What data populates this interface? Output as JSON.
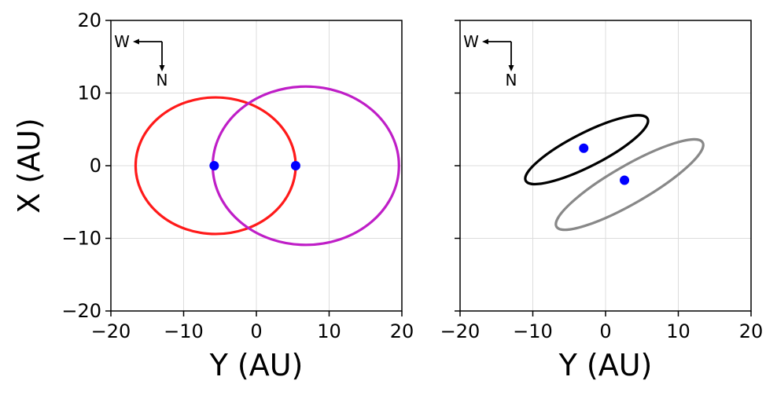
{
  "chart_data": [
    {
      "type": "line",
      "panel": "left",
      "xlabel": "Y (AU)",
      "ylabel": "X (AU)",
      "xlim": [
        -20,
        20
      ],
      "ylim": [
        -20,
        20
      ],
      "xticks": [
        -20,
        -10,
        0,
        10,
        20
      ],
      "yticks": [
        -20,
        -10,
        0,
        10,
        20
      ],
      "grid": true,
      "compass": {
        "west": "W",
        "north": "N"
      },
      "series": [
        {
          "type": "ellipse",
          "color": "#ff1a1a",
          "center": [
            -5.6,
            0.0
          ],
          "semi_axes": [
            11.0,
            9.4
          ],
          "rotation_deg": 0
        },
        {
          "type": "ellipse",
          "color": "#bf1ec7",
          "center": [
            6.8,
            0.0
          ],
          "semi_axes": [
            12.8,
            10.9
          ],
          "rotation_deg": 0
        }
      ],
      "points": [
        {
          "x": -5.8,
          "y": 0.0,
          "color": "#0000ff"
        },
        {
          "x": 5.4,
          "y": 0.0,
          "color": "#0000ff"
        }
      ]
    },
    {
      "type": "line",
      "panel": "right",
      "xlabel": "Y (AU)",
      "ylabel": "",
      "xlim": [
        -20,
        20
      ],
      "ylim": [
        -20,
        20
      ],
      "xticks": [
        -20,
        -10,
        0,
        10,
        20
      ],
      "yticks": [
        -20,
        -10,
        0,
        10,
        20
      ],
      "show_ytick_labels": false,
      "grid": true,
      "compass": {
        "west": "W",
        "north": "N"
      },
      "series": [
        {
          "type": "ellipse",
          "color": "#000000",
          "center": [
            -2.6,
            2.2
          ],
          "semi_axes": [
            9.4,
            2.3
          ],
          "rotation_deg": -27
        },
        {
          "type": "ellipse",
          "color": "#888888",
          "center": [
            3.3,
            -2.6
          ],
          "semi_axes": [
            11.6,
            2.6
          ],
          "rotation_deg": -30
        }
      ],
      "points": [
        {
          "x": -3.0,
          "y": 2.4,
          "color": "#0000ff"
        },
        {
          "x": 2.6,
          "y": -2.0,
          "color": "#0000ff"
        }
      ]
    }
  ]
}
